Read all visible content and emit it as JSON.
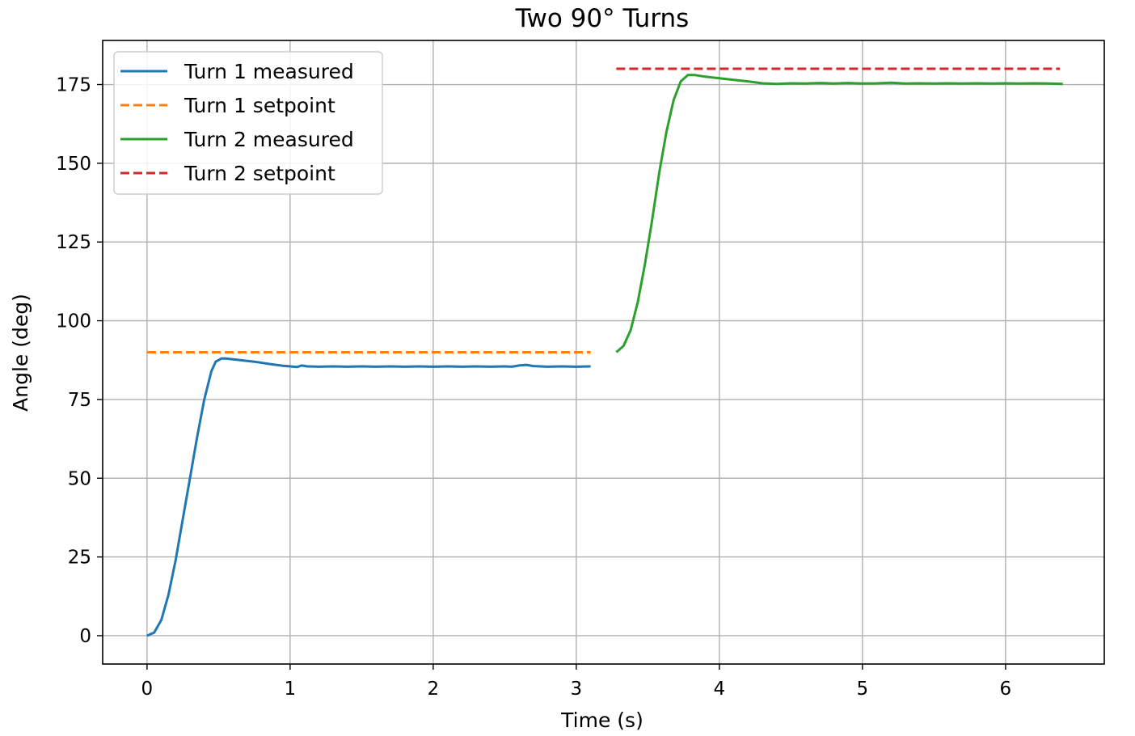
{
  "chart_data": {
    "type": "line",
    "title": "Two 90° Turns",
    "xlabel": "Time (s)",
    "ylabel": "Angle (deg)",
    "xlim": [
      -0.31,
      6.69
    ],
    "ylim": [
      -9,
      189
    ],
    "xticks": [
      0,
      1,
      2,
      3,
      4,
      5,
      6
    ],
    "yticks": [
      0,
      25,
      50,
      75,
      100,
      125,
      150,
      175
    ],
    "grid": true,
    "legend_position": "top-left",
    "series": [
      {
        "name": "Turn 1 measured",
        "color": "#1f77b4",
        "style": "solid",
        "x": [
          0,
          0.05,
          0.1,
          0.15,
          0.2,
          0.25,
          0.3,
          0.35,
          0.4,
          0.45,
          0.48,
          0.52,
          0.55,
          0.65,
          0.75,
          0.85,
          0.95,
          1.05,
          1.08,
          1.12,
          1.2,
          1.3,
          1.4,
          1.5,
          1.6,
          1.7,
          1.8,
          1.9,
          2.0,
          2.1,
          2.2,
          2.3,
          2.4,
          2.5,
          2.55,
          2.6,
          2.65,
          2.7,
          2.8,
          2.9,
          3.0,
          3.1
        ],
        "y": [
          0,
          1,
          5,
          13,
          24,
          37,
          50,
          63,
          75,
          84,
          87,
          88,
          88,
          87.5,
          87,
          86.3,
          85.7,
          85.3,
          85.8,
          85.5,
          85.4,
          85.5,
          85.4,
          85.5,
          85.4,
          85.5,
          85.4,
          85.5,
          85.4,
          85.5,
          85.4,
          85.5,
          85.4,
          85.5,
          85.4,
          85.8,
          86,
          85.6,
          85.4,
          85.5,
          85.4,
          85.5
        ]
      },
      {
        "name": "Turn 1 setpoint",
        "color": "#ff7f0e",
        "style": "dashed",
        "x": [
          0,
          3.1
        ],
        "y": [
          90,
          90
        ]
      },
      {
        "name": "Turn 2 measured",
        "color": "#2ca02c",
        "style": "solid",
        "x": [
          3.28,
          3.33,
          3.38,
          3.43,
          3.48,
          3.53,
          3.58,
          3.63,
          3.68,
          3.73,
          3.78,
          3.83,
          3.9,
          4.0,
          4.1,
          4.2,
          4.3,
          4.4,
          4.5,
          4.6,
          4.7,
          4.8,
          4.9,
          5.0,
          5.1,
          5.2,
          5.3,
          5.4,
          5.5,
          5.6,
          5.7,
          5.8,
          5.9,
          6.0,
          6.1,
          6.2,
          6.3,
          6.4
        ],
        "y": [
          90,
          92,
          97,
          106,
          118,
          132,
          147,
          160,
          170,
          176,
          178,
          178,
          177.5,
          177,
          176.5,
          176,
          175.4,
          175.2,
          175.4,
          175.3,
          175.5,
          175.3,
          175.5,
          175.3,
          175.4,
          175.6,
          175.3,
          175.4,
          175.3,
          175.4,
          175.3,
          175.4,
          175.3,
          175.4,
          175.3,
          175.4,
          175.3,
          175.2
        ]
      },
      {
        "name": "Turn 2 setpoint",
        "color": "#d62728",
        "style": "dashed",
        "x": [
          3.28,
          6.38
        ],
        "y": [
          180,
          180
        ]
      }
    ]
  }
}
